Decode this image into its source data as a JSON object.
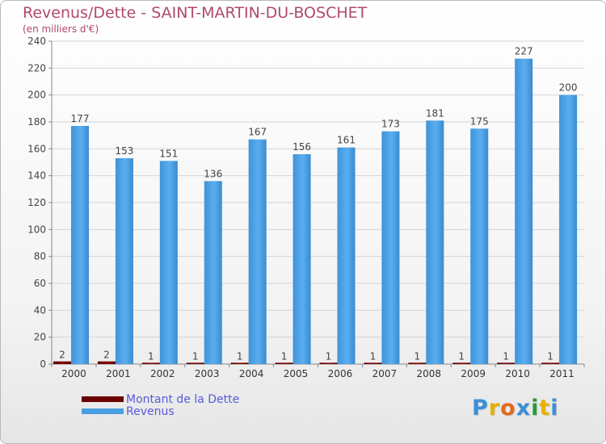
{
  "header": {
    "title": "Revenus/Dette - SAINT-MARTIN-DU-BOSCHET",
    "subtitle": "(en milliers d'€)"
  },
  "legend": {
    "items": [
      {
        "label": "Montant de la Dette",
        "color": "#6b0000"
      },
      {
        "label": "Revenus",
        "color": "#4a9fe0"
      }
    ]
  },
  "logo": {
    "text": "Proxiti",
    "letters": [
      "P",
      "r",
      "o",
      "x",
      "i",
      "t",
      "i"
    ],
    "colors": [
      "#3c8fd6",
      "#e8b000",
      "#e26a1e",
      "#3c8fd6",
      "#2a9a3a",
      "#e8b000",
      "#3c8fd6"
    ]
  },
  "chart_data": {
    "type": "bar",
    "title": "Revenus/Dette - SAINT-MARTIN-DU-BOSCHET",
    "ylabel": "(en milliers d'€)",
    "categories": [
      "2000",
      "2001",
      "2002",
      "2003",
      "2004",
      "2005",
      "2006",
      "2007",
      "2008",
      "2009",
      "2010",
      "2011"
    ],
    "series": [
      {
        "name": "Montant de la Dette",
        "color": "#6b0000",
        "values": [
          2,
          2,
          1,
          1,
          1,
          1,
          1,
          1,
          1,
          1,
          1,
          1
        ]
      },
      {
        "name": "Revenus",
        "color": "#4a9fe0",
        "values": [
          177,
          153,
          151,
          136,
          167,
          156,
          161,
          173,
          181,
          175,
          227,
          200
        ]
      }
    ],
    "ylim": [
      0,
      240
    ],
    "yticks": [
      0,
      20,
      40,
      60,
      80,
      100,
      120,
      140,
      160,
      180,
      200,
      220,
      240
    ],
    "grid": true
  }
}
